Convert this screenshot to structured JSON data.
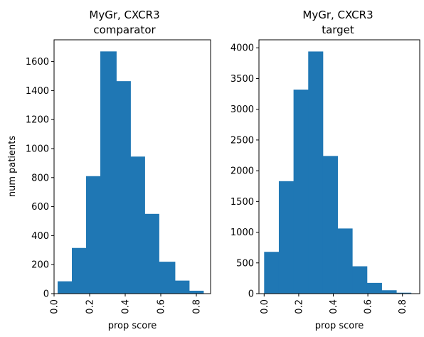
{
  "chart_data": [
    {
      "type": "bar",
      "title_line1": "MyGr, CXCR3",
      "title_line2": "comparator",
      "xlabel": "prop score",
      "ylabel": "num patients",
      "xlim": [
        -0.0,
        0.88
      ],
      "ylim": [
        0,
        1750
      ],
      "xticks": [
        0.0,
        0.2,
        0.4,
        0.6,
        0.8
      ],
      "xtick_labels": [
        "0.0",
        "0.2",
        "0.4",
        "0.6",
        "0.8"
      ],
      "yticks": [
        0,
        200,
        400,
        600,
        800,
        1000,
        1200,
        1400,
        1600
      ],
      "ytick_labels": [
        "0",
        "200",
        "400",
        "600",
        "800",
        "1000",
        "1200",
        "1400",
        "1600"
      ],
      "bin_edges": [
        0.02,
        0.1,
        0.18,
        0.26,
        0.35,
        0.43,
        0.51,
        0.59,
        0.68,
        0.76,
        0.84
      ],
      "values": [
        85,
        315,
        810,
        1670,
        1465,
        945,
        550,
        220,
        90,
        20
      ],
      "color": "#1f77b4"
    },
    {
      "type": "bar",
      "title_line1": "MyGr, CXCR3",
      "title_line2": "target",
      "xlabel": "prop score",
      "ylabel": "",
      "xlim": [
        -0.03,
        0.9
      ],
      "ylim": [
        0,
        4130
      ],
      "xticks": [
        0.0,
        0.2,
        0.4,
        0.6,
        0.8
      ],
      "xtick_labels": [
        "0.0",
        "0.2",
        "0.4",
        "0.6",
        "0.8"
      ],
      "yticks": [
        0,
        500,
        1000,
        1500,
        2000,
        2500,
        3000,
        3500,
        4000
      ],
      "ytick_labels": [
        "0",
        "500",
        "1000",
        "1500",
        "2000",
        "2500",
        "3000",
        "3500",
        "4000"
      ],
      "bin_edges": [
        0.0,
        0.085,
        0.17,
        0.255,
        0.34,
        0.425,
        0.51,
        0.595,
        0.68,
        0.765,
        0.85
      ],
      "values": [
        680,
        1830,
        3320,
        3940,
        2240,
        1060,
        445,
        175,
        55,
        15
      ],
      "color": "#1f77b4"
    }
  ]
}
